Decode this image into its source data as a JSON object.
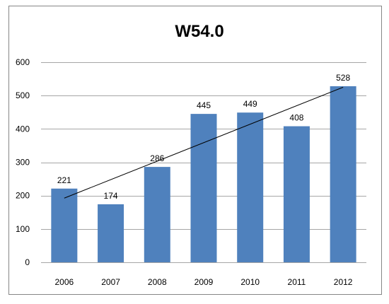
{
  "chart_data": {
    "type": "bar",
    "title": "W54.0",
    "categories": [
      "2006",
      "2007",
      "2008",
      "2009",
      "2010",
      "2011",
      "2012"
    ],
    "values": [
      221,
      174,
      286,
      445,
      449,
      408,
      528
    ],
    "data_labels": [
      "221",
      "174",
      "286",
      "445",
      "449",
      "408",
      "528"
    ],
    "ylim": [
      0,
      600
    ],
    "yticks": [
      0,
      100,
      200,
      300,
      400,
      500,
      600
    ],
    "ytick_labels": [
      "0",
      "100",
      "200",
      "300",
      "400",
      "500",
      "600"
    ],
    "grid": true,
    "trendline": "linear",
    "legend": "none",
    "bar_color": "#4F81BD",
    "grid_color": "#A6A6A6",
    "trendline_color": "#000000",
    "border_color": "#868686"
  }
}
